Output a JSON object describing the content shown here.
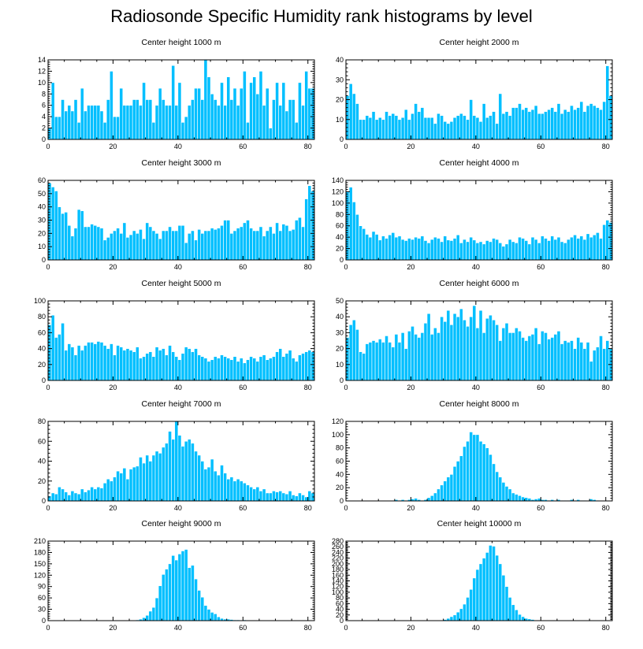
{
  "title": "Radiosonde Specific Humidity rank histograms by level",
  "colors": {
    "bar": "#00bfff",
    "bar_edge": "#ffffff",
    "axis": "#000000"
  },
  "chart_data": [
    {
      "type": "bar",
      "title": "Center height 1000 m",
      "xlim": [
        0,
        82
      ],
      "ylim": [
        0,
        14
      ],
      "xticks": [
        0,
        20,
        40,
        60,
        80
      ],
      "yticks": [
        0,
        2,
        4,
        6,
        8,
        10,
        12,
        14
      ],
      "values": [
        2,
        10,
        4,
        4,
        7,
        5,
        6,
        5,
        7,
        3,
        9,
        5,
        6,
        6,
        6,
        6,
        5,
        3,
        7,
        12,
        4,
        4,
        9,
        6,
        6,
        6,
        7,
        7,
        6,
        10,
        7,
        7,
        3,
        6,
        9,
        7,
        6,
        6,
        13,
        6,
        10,
        3,
        4,
        6,
        7,
        9,
        9,
        7,
        14,
        11,
        8,
        7,
        6,
        10,
        6,
        11,
        7,
        9,
        6,
        9,
        12,
        3,
        10,
        11,
        8,
        12,
        6,
        9,
        2,
        7,
        10,
        6,
        10,
        5,
        7,
        7,
        3,
        10,
        6,
        12,
        9,
        9
      ]
    },
    {
      "type": "bar",
      "title": "Center height 2000 m",
      "xlim": [
        0,
        82
      ],
      "ylim": [
        0,
        40
      ],
      "xticks": [
        0,
        20,
        40,
        60,
        80
      ],
      "yticks": [
        0,
        10,
        20,
        30,
        40
      ],
      "values": [
        22,
        28,
        23,
        18,
        10,
        10,
        12,
        11,
        14,
        10,
        11,
        10,
        14,
        12,
        13,
        12,
        10,
        11,
        15,
        10,
        13,
        18,
        14,
        16,
        11,
        11,
        11,
        8,
        13,
        12,
        9,
        8,
        9,
        11,
        12,
        13,
        12,
        10,
        20,
        12,
        11,
        9,
        18,
        11,
        12,
        14,
        8,
        23,
        13,
        14,
        12,
        16,
        16,
        18,
        15,
        16,
        14,
        15,
        17,
        13,
        13,
        14,
        15,
        16,
        14,
        18,
        13,
        15,
        14,
        17,
        15,
        16,
        19,
        14,
        17,
        18,
        17,
        16,
        15,
        19,
        37,
        22
      ]
    },
    {
      "type": "bar",
      "title": "Center height 3000 m",
      "xlim": [
        0,
        82
      ],
      "ylim": [
        0,
        60
      ],
      "xticks": [
        0,
        20,
        40,
        60,
        80
      ],
      "yticks": [
        0,
        10,
        20,
        30,
        40,
        50,
        60
      ],
      "values": [
        58,
        55,
        52,
        40,
        35,
        36,
        26,
        18,
        24,
        38,
        37,
        25,
        25,
        27,
        26,
        25,
        24,
        15,
        17,
        20,
        22,
        24,
        20,
        28,
        17,
        19,
        22,
        20,
        23,
        16,
        28,
        25,
        22,
        20,
        16,
        22,
        22,
        25,
        22,
        22,
        26,
        26,
        13,
        20,
        22,
        15,
        23,
        20,
        22,
        22,
        24,
        23,
        24,
        26,
        30,
        30,
        20,
        22,
        24,
        25,
        28,
        30,
        24,
        22,
        22,
        25,
        18,
        22,
        25,
        20,
        28,
        22,
        27,
        26,
        22,
        23,
        30,
        32,
        25,
        46,
        56,
        52
      ]
    },
    {
      "type": "bar",
      "title": "Center height 4000 m",
      "xlim": [
        0,
        82
      ],
      "ylim": [
        0,
        140
      ],
      "xticks": [
        0,
        20,
        40,
        60,
        80
      ],
      "yticks": [
        0,
        20,
        40,
        60,
        80,
        100,
        120,
        140
      ],
      "values": [
        120,
        128,
        102,
        80,
        60,
        55,
        45,
        40,
        50,
        45,
        35,
        42,
        38,
        44,
        48,
        40,
        42,
        36,
        34,
        38,
        36,
        40,
        38,
        42,
        34,
        30,
        36,
        40,
        38,
        32,
        42,
        35,
        34,
        38,
        44,
        30,
        36,
        32,
        40,
        35,
        30,
        32,
        28,
        34,
        32,
        38,
        36,
        30,
        24,
        28,
        36,
        32,
        30,
        40,
        38,
        34,
        28,
        40,
        36,
        30,
        42,
        38,
        34,
        42,
        36,
        40,
        32,
        30,
        36,
        40,
        44,
        38,
        42,
        36,
        46,
        40,
        44,
        48,
        38,
        62,
        70,
        66
      ]
    },
    {
      "type": "bar",
      "title": "Center height 5000 m",
      "xlim": [
        0,
        82
      ],
      "ylim": [
        0,
        100
      ],
      "xticks": [
        0,
        20,
        40,
        60,
        80
      ],
      "yticks": [
        0,
        20,
        40,
        60,
        80,
        100
      ],
      "values": [
        70,
        82,
        54,
        58,
        72,
        38,
        46,
        42,
        32,
        44,
        38,
        44,
        48,
        48,
        46,
        49,
        48,
        44,
        40,
        46,
        32,
        44,
        42,
        38,
        40,
        38,
        36,
        42,
        28,
        30,
        34,
        36,
        30,
        42,
        38,
        40,
        32,
        44,
        36,
        30,
        26,
        34,
        42,
        40,
        36,
        40,
        32,
        30,
        28,
        24,
        26,
        30,
        28,
        32,
        30,
        28,
        26,
        30,
        24,
        28,
        22,
        26,
        30,
        28,
        24,
        30,
        32,
        26,
        28,
        30,
        36,
        40,
        30,
        34,
        38,
        28,
        24,
        32,
        34,
        36,
        38,
        36
      ]
    },
    {
      "type": "bar",
      "title": "Center height 6000 m",
      "xlim": [
        0,
        82
      ],
      "ylim": [
        0,
        50
      ],
      "xticks": [
        0,
        20,
        40,
        60,
        80
      ],
      "yticks": [
        0,
        10,
        20,
        30,
        40,
        50
      ],
      "values": [
        27,
        35,
        38,
        32,
        18,
        17,
        23,
        24,
        25,
        24,
        26,
        24,
        28,
        24,
        21,
        29,
        24,
        30,
        20,
        31,
        34,
        29,
        27,
        30,
        36,
        42,
        29,
        33,
        30,
        40,
        37,
        44,
        35,
        42,
        40,
        45,
        38,
        34,
        40,
        47,
        33,
        44,
        30,
        39,
        41,
        38,
        35,
        25,
        33,
        36,
        30,
        30,
        33,
        31,
        27,
        25,
        28,
        29,
        33,
        23,
        31,
        30,
        26,
        27,
        29,
        31,
        23,
        25,
        24,
        25,
        20,
        27,
        24,
        20,
        24,
        12,
        19,
        21,
        28,
        20,
        25,
        20
      ]
    },
    {
      "type": "bar",
      "title": "Center height 7000 m",
      "xlim": [
        0,
        82
      ],
      "ylim": [
        0,
        80
      ],
      "xticks": [
        0,
        20,
        40,
        60,
        80
      ],
      "yticks": [
        0,
        20,
        40,
        60,
        80
      ],
      "values": [
        5,
        8,
        7,
        14,
        12,
        9,
        6,
        10,
        8,
        7,
        12,
        9,
        11,
        14,
        12,
        14,
        13,
        18,
        22,
        20,
        24,
        30,
        28,
        33,
        22,
        32,
        34,
        35,
        44,
        38,
        46,
        40,
        46,
        50,
        48,
        54,
        58,
        70,
        62,
        80,
        66,
        55,
        60,
        62,
        58,
        50,
        46,
        40,
        32,
        34,
        42,
        30,
        26,
        36,
        28,
        22,
        24,
        20,
        22,
        20,
        18,
        16,
        14,
        12,
        14,
        10,
        12,
        8,
        8,
        10,
        9,
        10,
        8,
        7,
        10,
        6,
        5,
        8,
        6,
        4,
        10,
        8
      ]
    },
    {
      "type": "bar",
      "title": "Center height 8000 m",
      "xlim": [
        0,
        82
      ],
      "ylim": [
        0,
        120
      ],
      "xticks": [
        0,
        20,
        40,
        60,
        80
      ],
      "yticks": [
        0,
        20,
        40,
        60,
        80,
        100,
        120
      ],
      "values": [
        0,
        0,
        0,
        0,
        0,
        0,
        0,
        0,
        0,
        0,
        0,
        0,
        0,
        0,
        0,
        2,
        1,
        2,
        1,
        2,
        3,
        4,
        2,
        1,
        2,
        5,
        8,
        12,
        18,
        24,
        30,
        36,
        40,
        52,
        60,
        68,
        82,
        90,
        104,
        100,
        100,
        90,
        86,
        80,
        70,
        56,
        44,
        36,
        28,
        22,
        18,
        12,
        10,
        8,
        6,
        5,
        4,
        2,
        3,
        4,
        2,
        2,
        1,
        2,
        1,
        2,
        1,
        1,
        1,
        2,
        1,
        2,
        1,
        1,
        0,
        3,
        2,
        1,
        0,
        0,
        0,
        0
      ]
    },
    {
      "type": "bar",
      "title": "Center height 9000 m",
      "xlim": [
        0,
        82
      ],
      "ylim": [
        0,
        210
      ],
      "xticks": [
        0,
        20,
        40,
        60,
        80
      ],
      "yticks": [
        0,
        30,
        60,
        90,
        120,
        150,
        180,
        210
      ],
      "values": [
        0,
        0,
        0,
        0,
        0,
        0,
        0,
        0,
        0,
        0,
        0,
        0,
        0,
        0,
        0,
        0,
        0,
        0,
        0,
        0,
        0,
        0,
        0,
        0,
        0,
        0,
        1,
        2,
        4,
        8,
        14,
        25,
        35,
        60,
        92,
        122,
        136,
        150,
        172,
        160,
        176,
        184,
        188,
        140,
        146,
        110,
        80,
        62,
        40,
        30,
        22,
        18,
        10,
        6,
        4,
        4,
        3,
        2,
        2,
        1,
        2,
        1,
        1,
        0,
        1,
        0,
        0,
        1,
        0,
        0,
        0,
        0,
        0,
        0,
        0,
        0,
        0,
        0,
        0,
        0,
        0,
        0
      ]
    },
    {
      "type": "bar",
      "title": "Center height 10000 m",
      "xlim": [
        0,
        82
      ],
      "ylim": [
        0,
        280
      ],
      "xticks": [
        0,
        20,
        40,
        60,
        80
      ],
      "yticks": [
        0,
        20,
        40,
        60,
        80,
        100,
        120,
        140,
        160,
        180,
        200,
        220,
        240,
        260,
        280
      ],
      "values": [
        0,
        0,
        0,
        0,
        0,
        0,
        0,
        0,
        0,
        0,
        0,
        0,
        0,
        0,
        0,
        0,
        0,
        0,
        0,
        0,
        0,
        0,
        0,
        0,
        0,
        0,
        0,
        0,
        0,
        2,
        4,
        8,
        14,
        20,
        30,
        42,
        58,
        82,
        110,
        150,
        180,
        200,
        220,
        240,
        265,
        262,
        230,
        200,
        160,
        120,
        82,
        56,
        38,
        22,
        14,
        8,
        6,
        4,
        2,
        2,
        1,
        1,
        0,
        0,
        0,
        0,
        0,
        0,
        0,
        0,
        0,
        0,
        0,
        0,
        0,
        0,
        0,
        0,
        0,
        0,
        0,
        0
      ]
    }
  ]
}
